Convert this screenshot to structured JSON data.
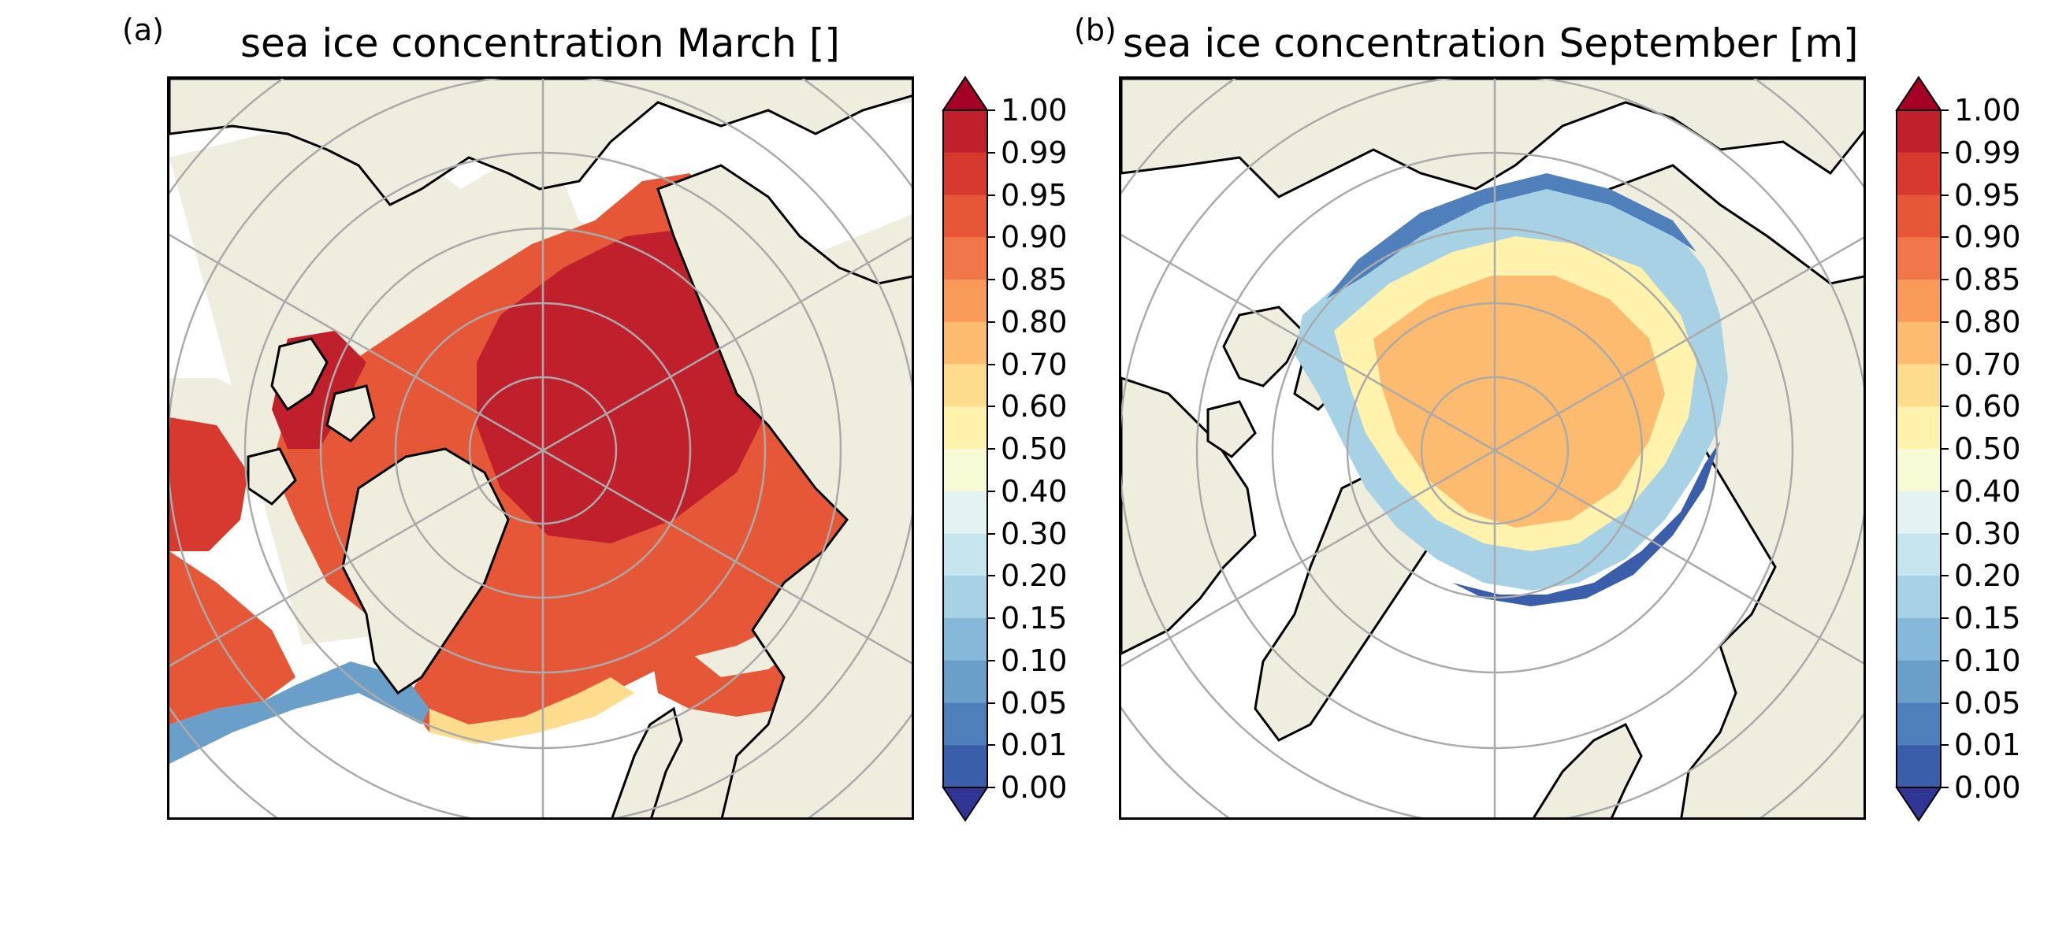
{
  "figure": {
    "panels": [
      {
        "id": "a",
        "letter": "(a)",
        "title": "sea ice concentration March []",
        "month": "March"
      },
      {
        "id": "b",
        "letter": "(b)",
        "title": "sea ice concentration September [m]",
        "month": "September"
      }
    ]
  },
  "colorbar": {
    "tick_labels": [
      "1.00",
      "0.99",
      "0.95",
      "0.90",
      "0.85",
      "0.80",
      "0.70",
      "0.60",
      "0.50",
      "0.40",
      "0.30",
      "0.20",
      "0.15",
      "0.10",
      "0.05",
      "0.01",
      "0.00"
    ],
    "colors_top_to_bottom": [
      "#c0202b",
      "#d7392f",
      "#e55737",
      "#f1774a",
      "#f89b58",
      "#fcbb6e",
      "#fddc8e",
      "#fff2ad",
      "#f7fbd5",
      "#e3f3f1",
      "#c6e5ef",
      "#a7d2e5",
      "#86b9d9",
      "#6a9fca",
      "#4f80bb",
      "#3a5ea9"
    ],
    "extend_max_color": "#a50026",
    "extend_min_color": "#313695"
  },
  "map_style": {
    "land_color": "#efedde",
    "ocean_color": "#ffffff",
    "grid_color": "#aaaaaa",
    "coast_color": "#000000"
  },
  "chart_data": [
    {
      "type": "heatmap",
      "title": "sea ice concentration March []",
      "projection": "north polar stereographic",
      "variable": "sea ice concentration",
      "levels": [
        0.0,
        0.01,
        0.05,
        0.1,
        0.15,
        0.2,
        0.3,
        0.4,
        0.5,
        0.6,
        0.7,
        0.8,
        0.85,
        0.9,
        0.95,
        0.99,
        1.0
      ],
      "dominant_range": [
        0.95,
        1.0
      ],
      "extend": "both"
    },
    {
      "type": "heatmap",
      "title": "sea ice concentration September [m]",
      "projection": "north polar stereographic",
      "variable": "sea ice concentration",
      "levels": [
        0.0,
        0.01,
        0.05,
        0.1,
        0.15,
        0.2,
        0.3,
        0.4,
        0.5,
        0.6,
        0.7,
        0.8,
        0.85,
        0.9,
        0.95,
        0.99,
        1.0
      ],
      "dominant_range": [
        0.7,
        0.85
      ],
      "extend": "both"
    }
  ]
}
